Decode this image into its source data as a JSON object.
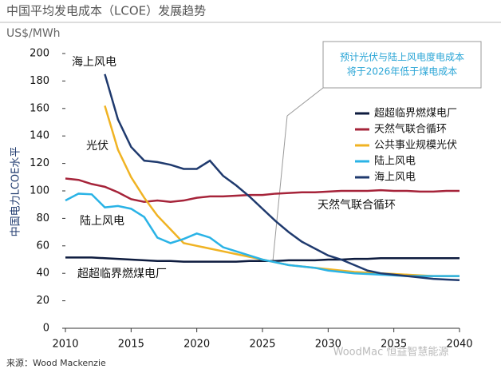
{
  "chart_data": {
    "type": "line",
    "title": "中国平均发电成本（LCOE）发展趋势",
    "subtitle": "US$/MWh",
    "y_label": "中国电力LCOE水平",
    "source": "来源：Wood Mackenzie",
    "watermark": "WoodMac 恒益智慧能源",
    "annotation": [
      "预计光伏与陆上风电度电成本",
      "将于2026年低于煤电成本"
    ],
    "inline_labels": [
      "海上风电",
      "光伏",
      "陆上风电",
      "天然气联合循环",
      "超超临界燃煤电厂"
    ],
    "x": [
      2010,
      2011,
      2012,
      2013,
      2014,
      2015,
      2016,
      2017,
      2018,
      2019,
      2020,
      2021,
      2022,
      2023,
      2024,
      2025,
      2026,
      2027,
      2028,
      2029,
      2030,
      2031,
      2032,
      2033,
      2034,
      2035,
      2036,
      2037,
      2038,
      2039,
      2040
    ],
    "xlim": [
      2010,
      2040
    ],
    "xticks": [
      2010,
      2015,
      2020,
      2025,
      2030,
      2035,
      2040
    ],
    "ylim": [
      0,
      200
    ],
    "yticks": [
      0,
      20,
      40,
      60,
      80,
      100,
      120,
      140,
      160,
      180,
      200
    ],
    "series": [
      {
        "name": "超超临界燃煤电厂",
        "color": "#0d1b3e",
        "values": [
          51.5,
          51.5,
          51.5,
          51,
          50.5,
          50,
          49.5,
          49,
          49,
          48.5,
          48.5,
          48.5,
          48.5,
          48.5,
          49,
          49,
          49,
          49.5,
          49.5,
          49.5,
          50,
          50,
          50.5,
          50.5,
          51,
          51,
          51,
          51,
          51,
          51,
          51
        ]
      },
      {
        "name": "天然气联合循环",
        "color": "#a6243a",
        "values": [
          109,
          108,
          105,
          103,
          99,
          94,
          92,
          93,
          92,
          93,
          95,
          96,
          96,
          96.5,
          97,
          97,
          98,
          98.5,
          99,
          99,
          99.5,
          100,
          100,
          100,
          100.5,
          100,
          100,
          99.5,
          99.5,
          100,
          100
        ]
      },
      {
        "name": "公共事业规模光伏",
        "color": "#f0b323",
        "values": [
          null,
          null,
          null,
          162,
          130,
          110,
          95,
          82,
          72,
          62,
          60,
          58,
          56,
          54,
          52,
          50,
          48,
          46,
          45,
          44,
          43,
          42,
          41,
          40.5,
          40,
          39.5,
          39,
          38.5,
          38,
          38,
          38
        ]
      },
      {
        "name": "陆上风电",
        "color": "#2ab3e6",
        "values": [
          93,
          98,
          97.5,
          88,
          89,
          87,
          81,
          66,
          62,
          65,
          69,
          66,
          59,
          56,
          53,
          50,
          48,
          46,
          45,
          44,
          42,
          41,
          40,
          39.5,
          39,
          38.5,
          38,
          38,
          38,
          38,
          38
        ]
      },
      {
        "name": "海上风电",
        "color": "#1f3a6e",
        "values": [
          null,
          null,
          null,
          185,
          152,
          132,
          122,
          121,
          119,
          116,
          116,
          122,
          111,
          104,
          96,
          87,
          78,
          70,
          63,
          58,
          53,
          50,
          46,
          42,
          40,
          39,
          38,
          37,
          36,
          35.5,
          35
        ]
      }
    ]
  }
}
